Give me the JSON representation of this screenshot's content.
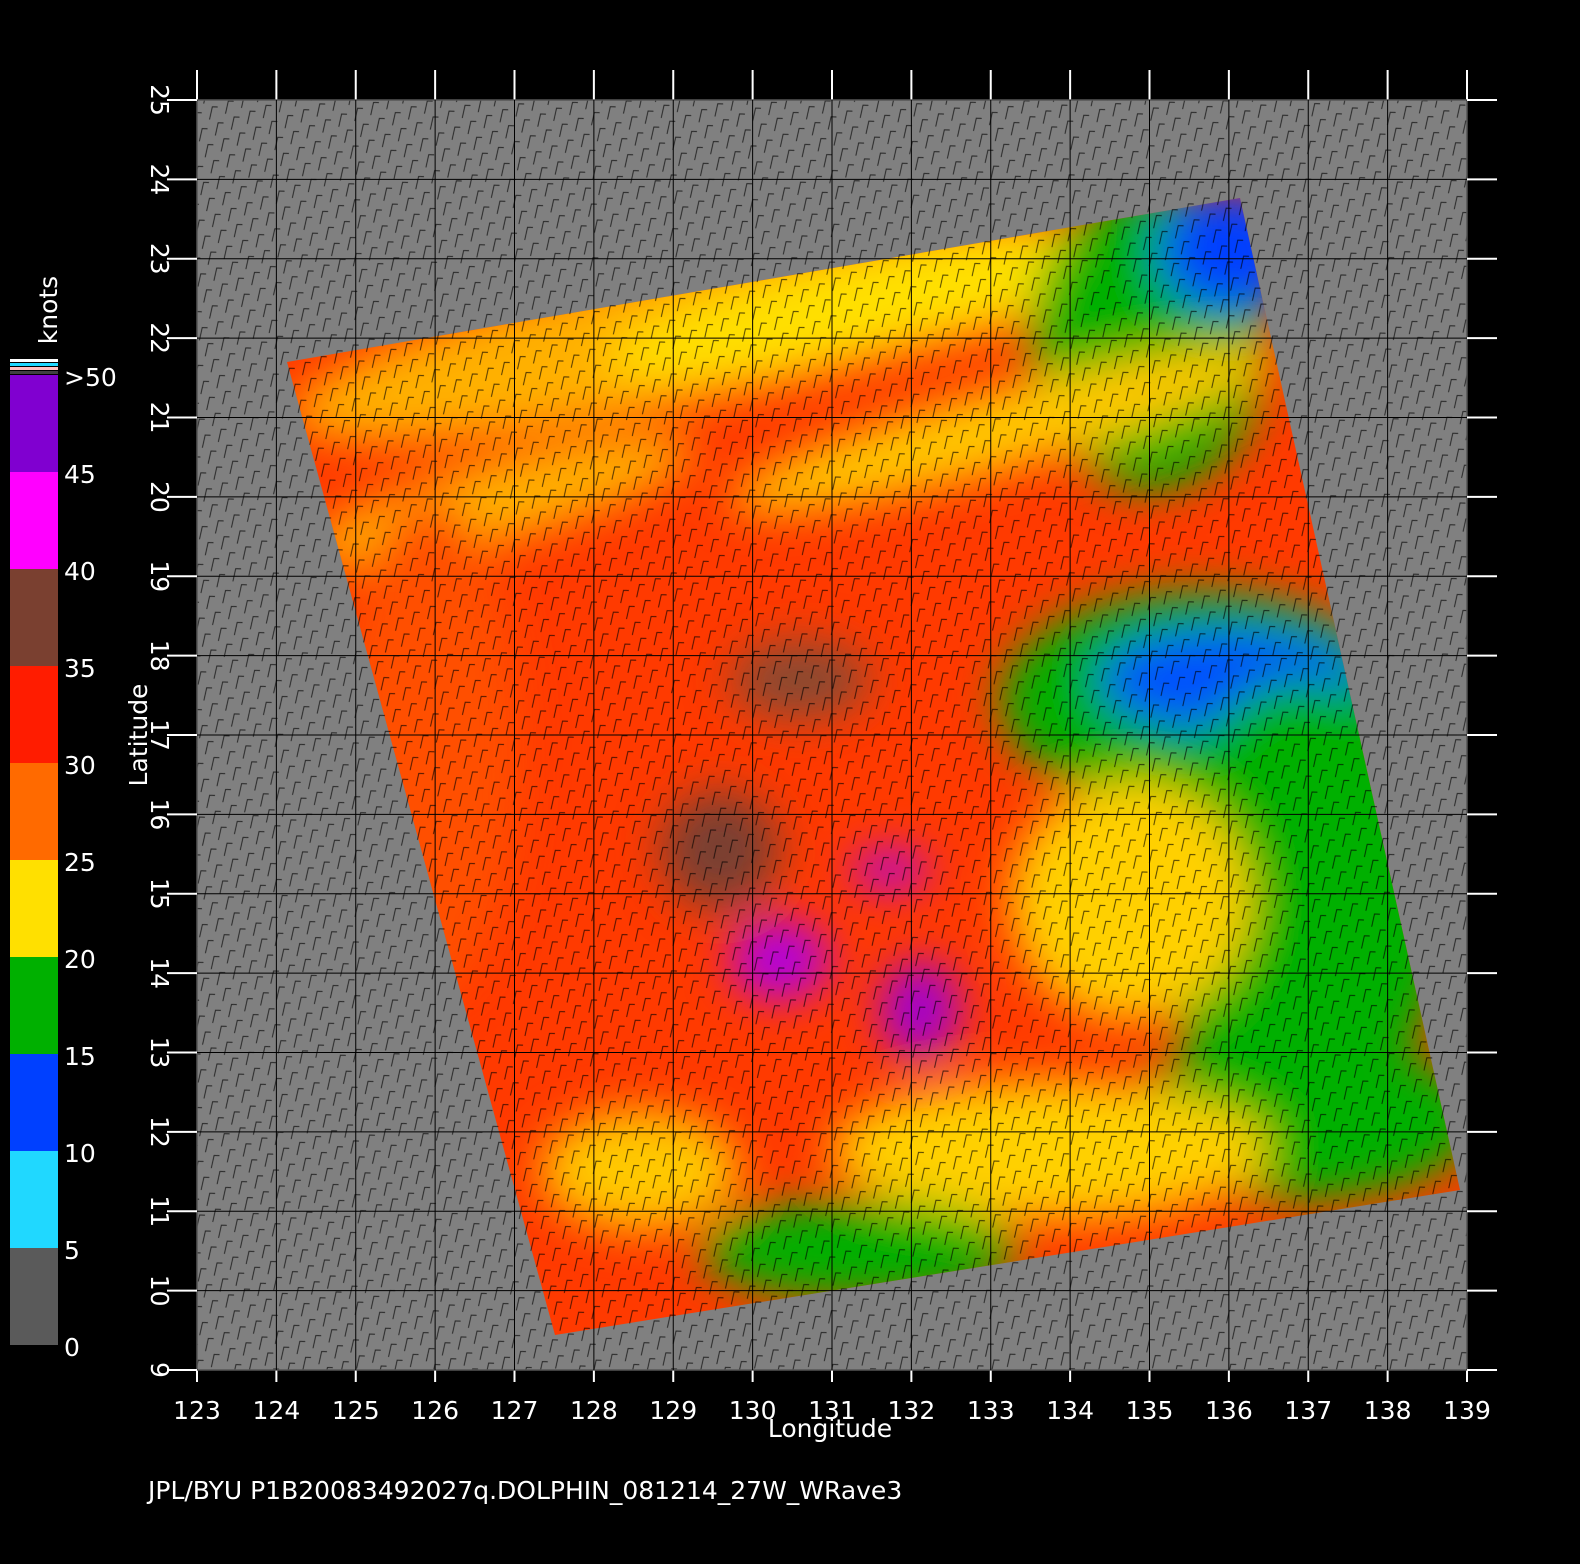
{
  "map": {
    "xlabel": "Longitude",
    "ylabel": "Latitude",
    "xlim": [
      123,
      139
    ],
    "ylim": [
      9,
      25
    ],
    "xticks": [
      123,
      124,
      125,
      126,
      127,
      128,
      129,
      130,
      131,
      132,
      133,
      134,
      135,
      136,
      137,
      138,
      139
    ],
    "yticks": [
      9,
      10,
      11,
      12,
      13,
      14,
      15,
      16,
      17,
      18,
      19,
      20,
      21,
      22,
      23,
      24,
      25
    ]
  },
  "colorbar": {
    "title": "knots",
    "lim": [
      0,
      50
    ],
    "ticks": [
      0,
      5,
      10,
      15,
      20,
      25,
      30,
      35,
      40,
      45,
      {
        "value": 50,
        "label": ">50"
      }
    ],
    "colors": [
      "#5a5a5a",
      "#20d8ff",
      "#0040ff",
      "#00b000",
      "#ffe000",
      "#ff6a00",
      "#ff1c00",
      "#7a4030",
      "#ff00ff",
      "#8000d0"
    ]
  },
  "footer": "JPL/BYU  P1B20083492027q.DOLPHIN_081214_27W_WRave3"
}
